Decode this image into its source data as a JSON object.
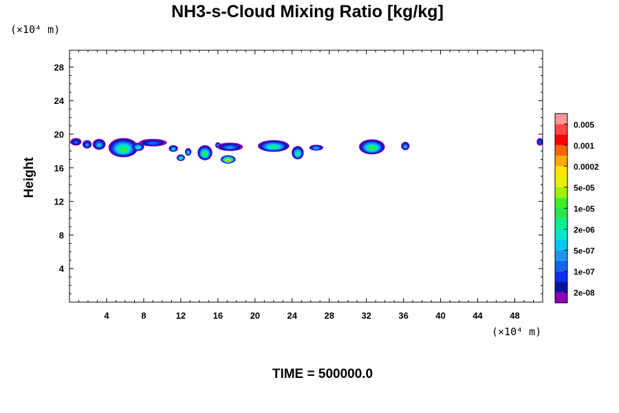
{
  "chart_data": {
    "type": "heatmap",
    "title": "NH3-s-Cloud Mixing Ratio [kg/kg]",
    "ylabel": "Height",
    "x_unit": "(×10⁴ m)",
    "y_unit": "(×10⁴ m)",
    "xlim": [
      0,
      51
    ],
    "ylim": [
      0,
      30
    ],
    "x_ticks": [
      4,
      8,
      12,
      16,
      20,
      24,
      28,
      32,
      36,
      40,
      44,
      48
    ],
    "y_ticks": [
      4,
      8,
      12,
      16,
      20,
      24,
      28
    ],
    "colorbar": {
      "colors": [
        "#8c00b4",
        "#0b14a0",
        "#0a2ff0",
        "#1464f0",
        "#1e96f0",
        "#00c8f0",
        "#00e6c8",
        "#00f090",
        "#28e650",
        "#3cf028",
        "#a0f000",
        "#e6f000",
        "#ffe600",
        "#ffaa00",
        "#ff6400",
        "#ff0000",
        "#ff4646",
        "#ff9696"
      ],
      "labels": [
        "2e-08",
        "1e-07",
        "5e-07",
        "2e-06",
        "1e-05",
        "5e-05",
        "0.0002",
        "0.001",
        "0.005"
      ]
    },
    "clouds": [
      {
        "x": 0.7,
        "y": 19.1,
        "w": 1.2,
        "h": 0.9,
        "level": 3
      },
      {
        "x": 1.9,
        "y": 18.8,
        "w": 1.0,
        "h": 1.0,
        "level": 4
      },
      {
        "x": 3.2,
        "y": 18.8,
        "w": 1.4,
        "h": 1.3,
        "level": 5
      },
      {
        "x": 5.8,
        "y": 18.4,
        "w": 3.2,
        "h": 2.3,
        "level": 9
      },
      {
        "x": 7.4,
        "y": 18.5,
        "w": 1.3,
        "h": 1.0,
        "level": 7
      },
      {
        "x": 9.0,
        "y": 19.0,
        "w": 3.0,
        "h": 0.9,
        "level": 3
      },
      {
        "x": 11.2,
        "y": 18.3,
        "w": 1.0,
        "h": 0.8,
        "level": 6
      },
      {
        "x": 12.0,
        "y": 17.2,
        "w": 0.9,
        "h": 0.8,
        "level": 8
      },
      {
        "x": 12.8,
        "y": 17.9,
        "w": 0.7,
        "h": 0.9,
        "level": 6
      },
      {
        "x": 14.6,
        "y": 17.8,
        "w": 1.6,
        "h": 1.8,
        "level": 9
      },
      {
        "x": 16.0,
        "y": 18.7,
        "w": 0.6,
        "h": 0.7,
        "level": 5
      },
      {
        "x": 17.3,
        "y": 18.5,
        "w": 2.8,
        "h": 1.0,
        "level": 4
      },
      {
        "x": 17.1,
        "y": 17.0,
        "w": 1.6,
        "h": 1.0,
        "level": 14
      },
      {
        "x": 22.0,
        "y": 18.6,
        "w": 3.4,
        "h": 1.4,
        "level": 8
      },
      {
        "x": 24.6,
        "y": 17.8,
        "w": 1.3,
        "h": 1.6,
        "level": 8
      },
      {
        "x": 26.6,
        "y": 18.4,
        "w": 1.5,
        "h": 0.7,
        "level": 5
      },
      {
        "x": 32.6,
        "y": 18.5,
        "w": 2.8,
        "h": 1.8,
        "level": 9
      },
      {
        "x": 36.2,
        "y": 18.6,
        "w": 0.9,
        "h": 1.0,
        "level": 5
      },
      {
        "x": 50.7,
        "y": 19.1,
        "w": 0.7,
        "h": 0.9,
        "level": 3
      }
    ]
  },
  "footer": {
    "time_label": "TIME = 500000.0"
  }
}
